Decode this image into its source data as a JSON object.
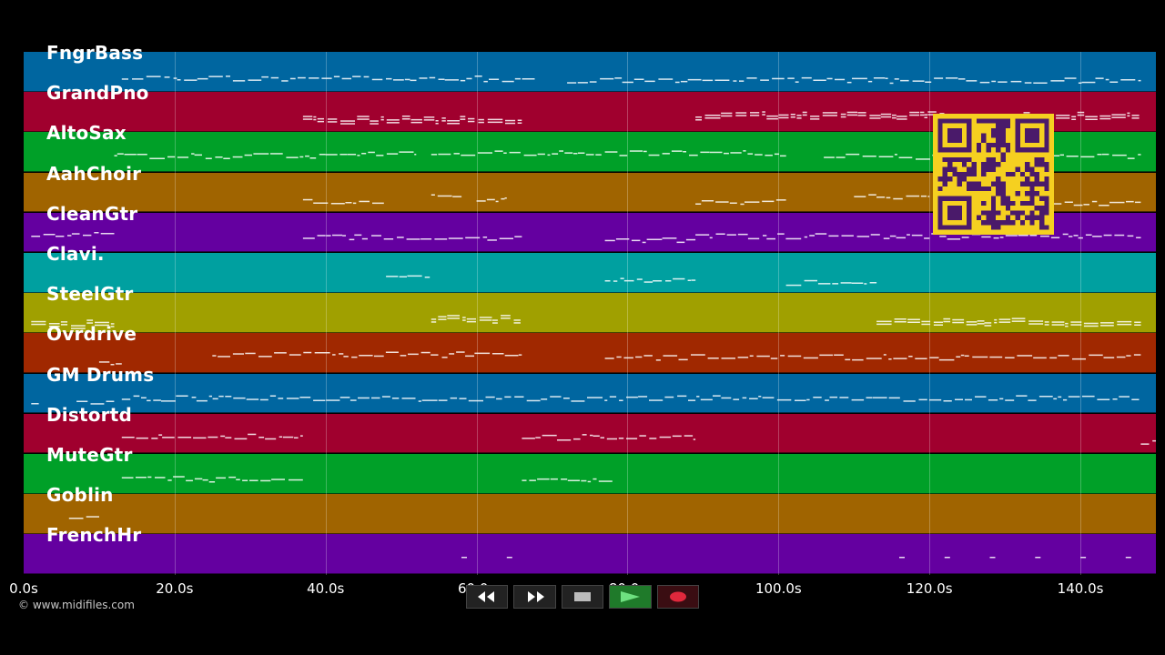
{
  "tracks": [
    {
      "name": "FngrBass",
      "color": "#0066a0"
    },
    {
      "name": "GrandPno",
      "color": "#a0002e"
    },
    {
      "name": "AltoSax",
      "color": "#00a028"
    },
    {
      "name": "AahChoir",
      "color": "#a06400"
    },
    {
      "name": "CleanGtr",
      "color": "#6400a0"
    },
    {
      "name": "Clavi.",
      "color": "#00a0a0"
    },
    {
      "name": "SteelGtr",
      "color": "#a0a000"
    },
    {
      "name": "Ovrdrive",
      "color": "#a02800"
    },
    {
      "name": "GM Drums",
      "color": "#0066a0"
    },
    {
      "name": "Distortd",
      "color": "#a0002e"
    },
    {
      "name": "MuteGtr",
      "color": "#00a028"
    },
    {
      "name": "Goblin",
      "color": "#a06400"
    },
    {
      "name": "FrenchHr",
      "color": "#6400a0"
    }
  ],
  "timeline": {
    "ticks": [
      "0.0s",
      "20.0s",
      "40.0s",
      "60.0s",
      "80.0s",
      "100.0s",
      "120.0s",
      "140.0s"
    ],
    "tick_seconds": [
      0,
      20,
      40,
      60,
      80,
      100,
      120,
      140
    ],
    "duration_seconds": 150
  },
  "copyright": "© www.midifiles.com",
  "controls": {
    "rewind": "rewind-icon",
    "fast_forward": "fast-forward-icon",
    "stop": "stop-icon",
    "play": "play-icon",
    "record": "record-icon"
  },
  "qr_color": "#f5d020"
}
